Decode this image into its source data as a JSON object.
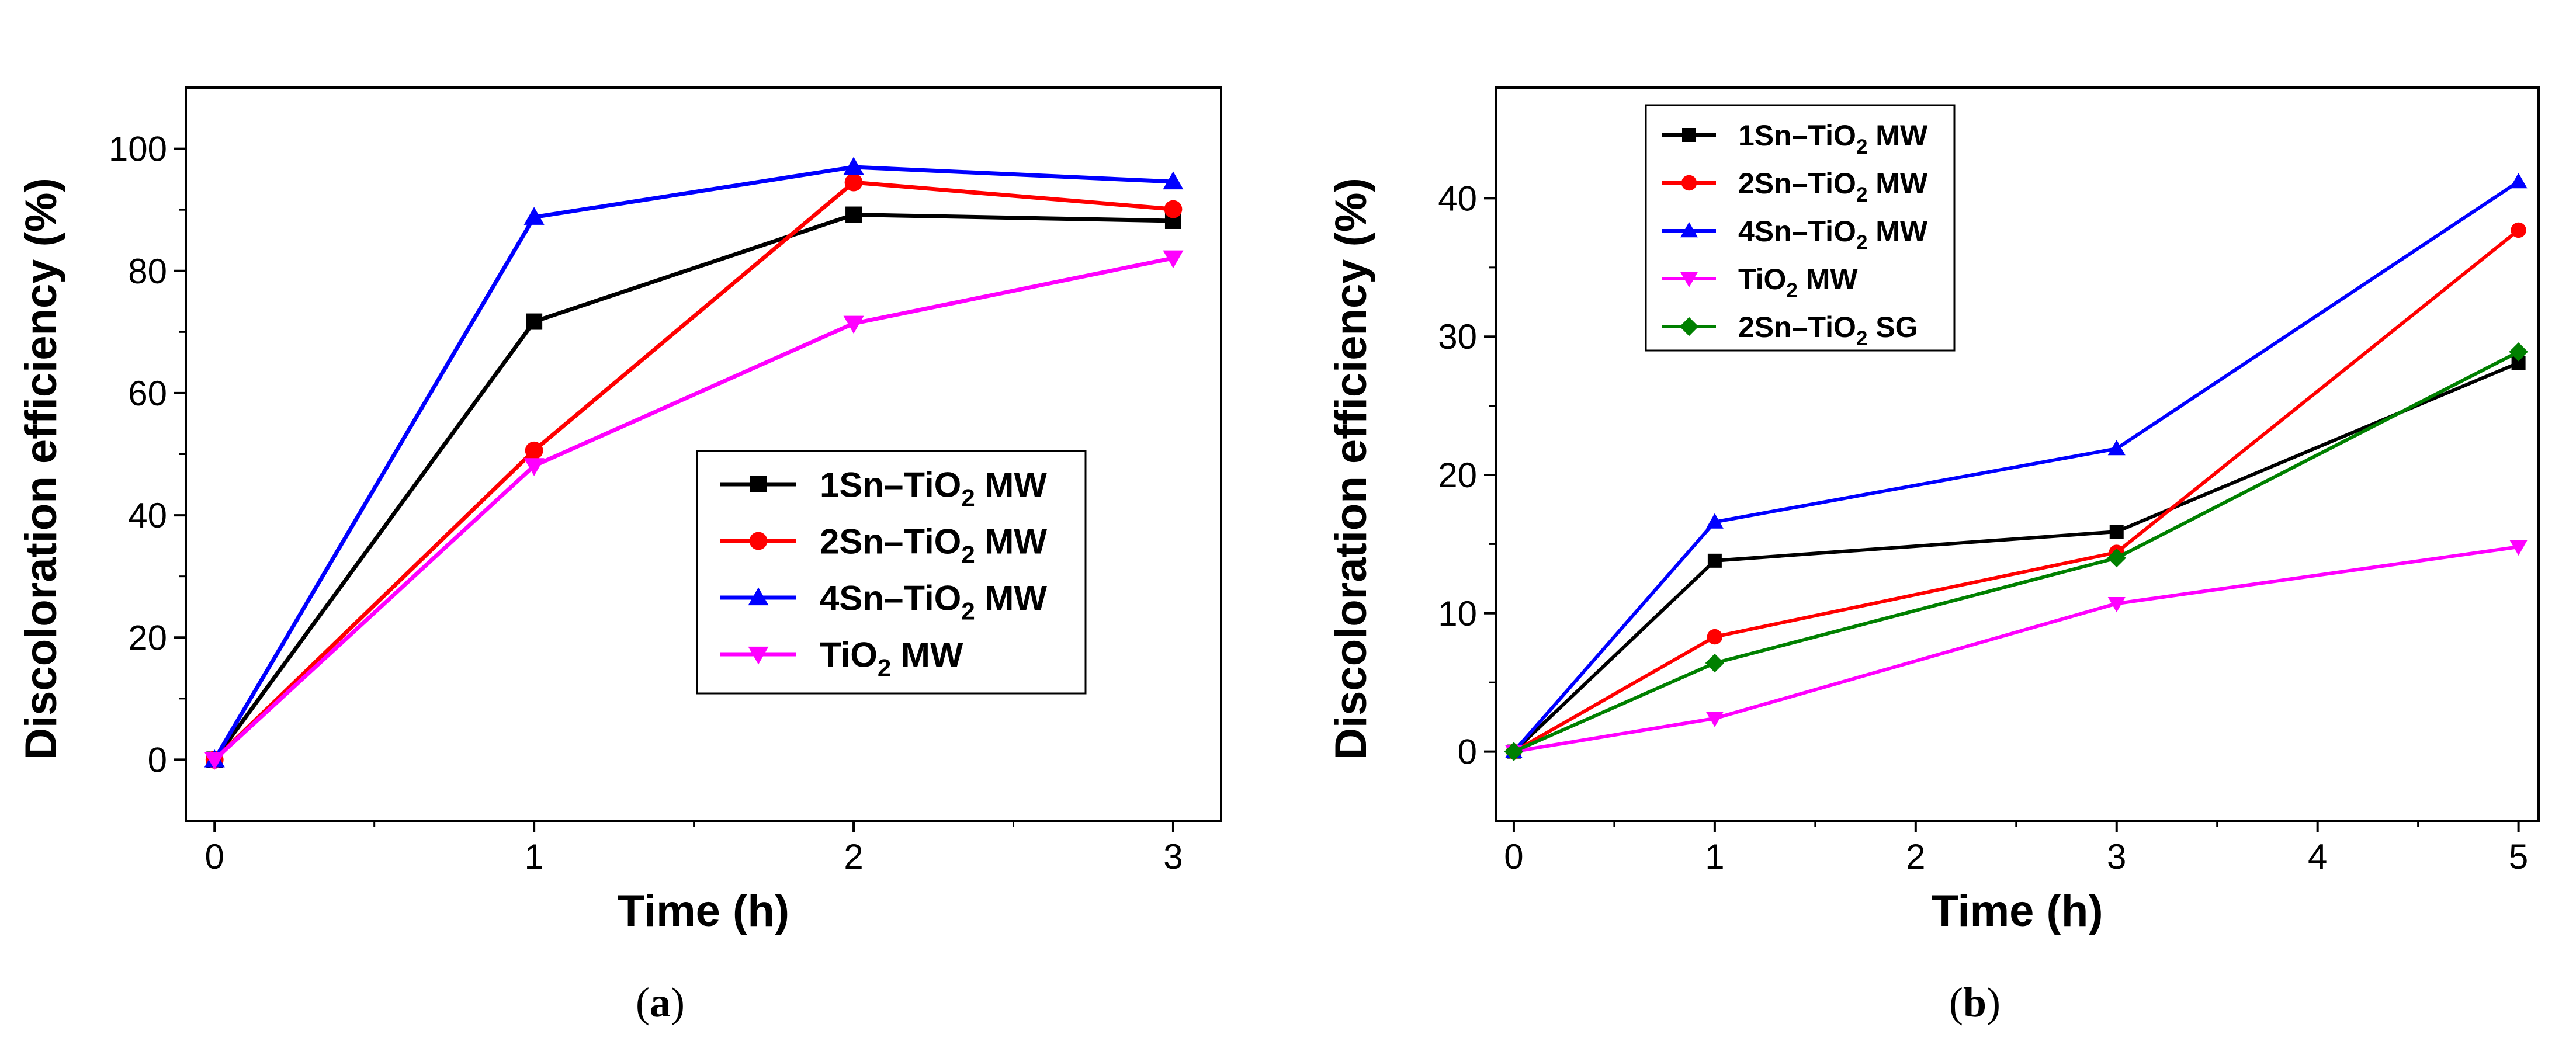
{
  "chart_data": [
    {
      "type": "line",
      "panel_label": "a",
      "title": "",
      "xlabel": "Time (h)",
      "ylabel": "Discoloration efficiency (%)",
      "xlim": [
        -0.09,
        3.15
      ],
      "ylim": [
        -10,
        110
      ],
      "xticks": [
        0,
        1,
        2,
        3
      ],
      "yticks": [
        0,
        20,
        40,
        60,
        80,
        100
      ],
      "grid": false,
      "legend_position": "center-right",
      "x": [
        0,
        1,
        2,
        3
      ],
      "series": [
        {
          "name": "1Sn–TiO2 MW",
          "formula": [
            "1Sn–TiO",
            "2",
            " MW"
          ],
          "color": "#000000",
          "marker": "square",
          "values": [
            0,
            71.7,
            89.2,
            88.2
          ]
        },
        {
          "name": "2Sn–TiO2 MW",
          "formula": [
            "2Sn–TiO",
            "2",
            " MW"
          ],
          "color": "#ff0000",
          "marker": "circle",
          "values": [
            0,
            50.6,
            94.5,
            90.1
          ]
        },
        {
          "name": "4Sn–TiO2 MW",
          "formula": [
            "4Sn–TiO",
            "2",
            " MW"
          ],
          "color": "#0000ff",
          "marker": "triangle-up",
          "values": [
            0,
            88.8,
            97.0,
            94.6
          ]
        },
        {
          "name": "TiO2 MW",
          "formula": [
            "TiO",
            "2",
            " MW"
          ],
          "color": "#ff00ff",
          "marker": "triangle-down",
          "values": [
            0,
            48.1,
            71.4,
            82.1
          ]
        }
      ]
    },
    {
      "type": "line",
      "panel_label": "b",
      "title": "",
      "xlabel": "Time (h)",
      "ylabel": "Discoloration efficiency (%)",
      "xlim": [
        -0.09,
        5.1
      ],
      "ylim": [
        -5,
        48
      ],
      "xticks": [
        0,
        1,
        2,
        3,
        4,
        5
      ],
      "yticks": [
        0,
        10,
        20,
        30,
        40
      ],
      "grid": false,
      "legend_position": "top-left",
      "x": [
        0,
        1,
        3,
        5
      ],
      "series": [
        {
          "name": "1Sn–TiO2 MW",
          "formula": [
            "1Sn–TiO",
            "2",
            " MW"
          ],
          "color": "#000000",
          "marker": "square",
          "values": [
            0,
            13.8,
            15.9,
            28.1
          ]
        },
        {
          "name": "2Sn–TiO2 MW",
          "formula": [
            "2Sn–TiO",
            "2",
            " MW"
          ],
          "color": "#ff0000",
          "marker": "circle",
          "values": [
            0,
            8.3,
            14.4,
            37.7
          ]
        },
        {
          "name": "4Sn–TiO2 MW",
          "formula": [
            "4Sn–TiO",
            "2",
            " MW"
          ],
          "color": "#0000ff",
          "marker": "triangle-up",
          "values": [
            0,
            16.6,
            21.9,
            41.2
          ]
        },
        {
          "name": "TiO2 MW",
          "formula": [
            "TiO",
            "2",
            " MW"
          ],
          "color": "#ff00ff",
          "marker": "triangle-down",
          "values": [
            0,
            2.4,
            10.7,
            14.8
          ]
        },
        {
          "name": "2Sn–TiO2 SG",
          "formula": [
            "2Sn–TiO",
            "2",
            " SG"
          ],
          "color": "#008000",
          "marker": "diamond",
          "values": [
            0,
            6.4,
            14.0,
            28.9
          ]
        }
      ]
    }
  ]
}
